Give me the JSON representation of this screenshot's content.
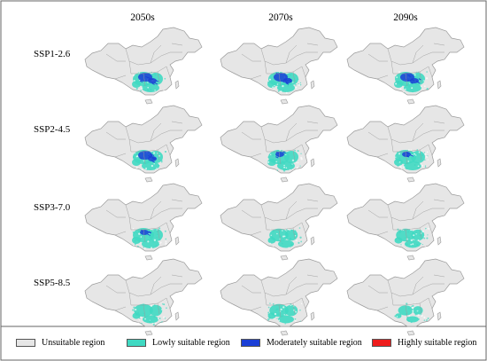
{
  "columns": [
    "2050s",
    "2070s",
    "2090s"
  ],
  "rows": [
    "SSP1-2.6",
    "SSP2-4.5",
    "SSP3-7.0",
    "SSP5-8.5"
  ],
  "legend": [
    {
      "label": "Unsuitable region",
      "color": "#e6e6e6"
    },
    {
      "label": "Lowly suitable region",
      "color": "#3fd9c2"
    },
    {
      "label": "Moderately suitable region",
      "color": "#1b3fd6"
    },
    {
      "label": "Highly suitable region",
      "color": "#ee1c1c"
    }
  ],
  "map_style": {
    "land": "#e6e6e6",
    "border": "#9a9a9a",
    "frame": "#666666"
  },
  "suitability_levels": [
    [
      "moderate-high",
      "moderate-high",
      "moderate-high"
    ],
    [
      "moderate-high",
      "moderate-low",
      "moderate-low"
    ],
    [
      "moderate-low",
      "low",
      "low"
    ],
    [
      "low",
      "low",
      "very-low"
    ]
  ]
}
